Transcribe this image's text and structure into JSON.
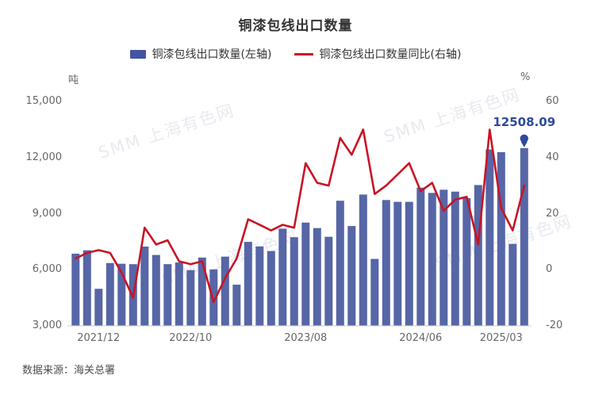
{
  "title": "铜漆包线出口数量",
  "source": "数据来源：海关总署",
  "watermark": "SMM 上海有色网",
  "left_axis": {
    "unit": "吨",
    "ticks": [
      "15,000",
      "12,000",
      "9,000",
      "6,000",
      "3,000"
    ]
  },
  "right_axis": {
    "unit": "%",
    "ticks": [
      "60",
      "40",
      "20",
      "0",
      "-20"
    ]
  },
  "x_axis": {
    "shown_labels": [
      {
        "index": 2,
        "text": "2021/12"
      },
      {
        "index": 10,
        "text": "2022/10"
      },
      {
        "index": 20,
        "text": "2023/08"
      },
      {
        "index": 30,
        "text": "2024/06"
      },
      {
        "index": 37,
        "text": "2025/03"
      }
    ]
  },
  "annotation": {
    "value": "12508.09",
    "index": 39
  },
  "colors": {
    "bar": "#5666a6",
    "legend_bar": "#4355a2",
    "line": "#c81425",
    "annotation": "#2d4a9b",
    "axis_line": "#cccccc",
    "tick_text": "#666666"
  },
  "chart_data": {
    "type": "bar+line",
    "title": "铜漆包线出口数量",
    "categories": [
      "2021/10",
      "2021/11",
      "2021/12",
      "2022/03",
      "2022/04",
      "2022/05",
      "2022/06",
      "2022/07",
      "2022/08",
      "2022/09",
      "2022/10",
      "2022/11",
      "2022/12",
      "2023/01",
      "2023/02",
      "2023/03",
      "2023/04",
      "2023/05",
      "2023/06",
      "2023/07",
      "2023/08",
      "2023/09",
      "2023/10",
      "2023/11",
      "2023/12",
      "2024/01",
      "2024/02",
      "2024/03",
      "2024/04",
      "2024/05",
      "2024/06",
      "2024/07",
      "2024/08",
      "2024/09",
      "2024/10",
      "2024/11",
      "2024/12",
      "2025/03",
      "2025/04",
      "2025/05"
    ],
    "series": [
      {
        "name": "铜漆包线出口数量(左轴)",
        "type": "bar",
        "axis": "left",
        "unit": "吨",
        "values": [
          6860,
          7040,
          4980,
          6360,
          6320,
          6300,
          7240,
          6790,
          6300,
          6390,
          5980,
          6650,
          6020,
          6700,
          5200,
          7490,
          7250,
          7000,
          8200,
          7740,
          8520,
          8230,
          7760,
          9690,
          8340,
          10020,
          6580,
          9730,
          9630,
          9630,
          10390,
          10110,
          10280,
          10180,
          9830,
          10530,
          12430,
          12290,
          7380,
          12508.09
        ]
      },
      {
        "name": "铜漆包线出口数量同比(右轴)",
        "type": "line",
        "axis": "right",
        "unit": "%",
        "values": [
          4,
          6,
          7,
          6,
          -1,
          -10,
          15,
          9,
          10.5,
          3,
          2,
          3,
          -11.5,
          -3,
          4,
          18,
          16,
          14,
          16,
          15,
          38,
          31,
          30,
          47,
          41,
          50,
          27,
          30,
          34,
          38,
          28,
          31,
          21,
          25,
          26,
          9,
          50,
          22,
          14,
          30
        ]
      }
    ],
    "ylim_left": [
      3000,
      15000
    ],
    "ylim_right": [
      -20,
      60
    ],
    "grid": false,
    "legend_position": "top",
    "marked_point": {
      "index": 39,
      "label": "12508.09"
    }
  }
}
